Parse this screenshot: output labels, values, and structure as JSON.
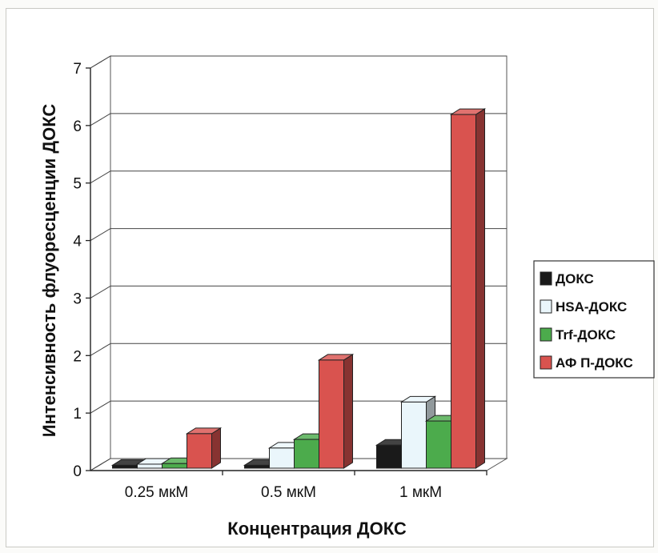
{
  "chart_data": {
    "type": "bar",
    "style": "3d-clustered-column",
    "title": "",
    "xlabel": "Концентрация ДОКС",
    "ylabel": "Интенсивность флуоресценции ДОКС",
    "categories": [
      "0.25 мкМ",
      "0.5 мкМ",
      "1 мкМ"
    ],
    "ylim": [
      0,
      7
    ],
    "yticks": [
      "0",
      "1",
      "2",
      "3",
      "4",
      "5",
      "6",
      "7"
    ],
    "grid": true,
    "legend_position": "right",
    "series": [
      {
        "name": "ДОКС",
        "values": [
          0.05,
          0.05,
          0.4
        ],
        "color": "#1a1a1a"
      },
      {
        "name": "HSA-ДОКС",
        "values": [
          0.07,
          0.35,
          1.15
        ],
        "color": "#eaf6fb"
      },
      {
        "name": "Trf-ДОКС",
        "values": [
          0.08,
          0.5,
          0.82
        ],
        "color": "#4cab4c"
      },
      {
        "name": "АФ П-ДОКС",
        "values": [
          0.6,
          1.88,
          6.15
        ],
        "color": "#d9534f"
      }
    ]
  }
}
